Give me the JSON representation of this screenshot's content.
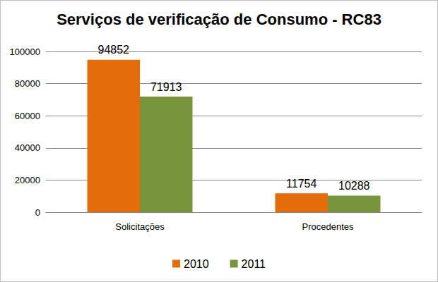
{
  "chart_data": {
    "type": "bar",
    "title": "Serviços de verificação de Consumo - RC83",
    "categories": [
      "Solicitações",
      "Procedentes"
    ],
    "series": [
      {
        "name": "2010",
        "color": "#e46c0a",
        "values": [
          94852,
          11754
        ]
      },
      {
        "name": "2011",
        "color": "#77933c",
        "values": [
          71913,
          10288
        ]
      }
    ],
    "ylim": [
      0,
      100000
    ],
    "yticks": [
      0,
      20000,
      40000,
      60000,
      80000,
      100000
    ],
    "grid": true,
    "legend": "bottom",
    "data_labels": true
  }
}
